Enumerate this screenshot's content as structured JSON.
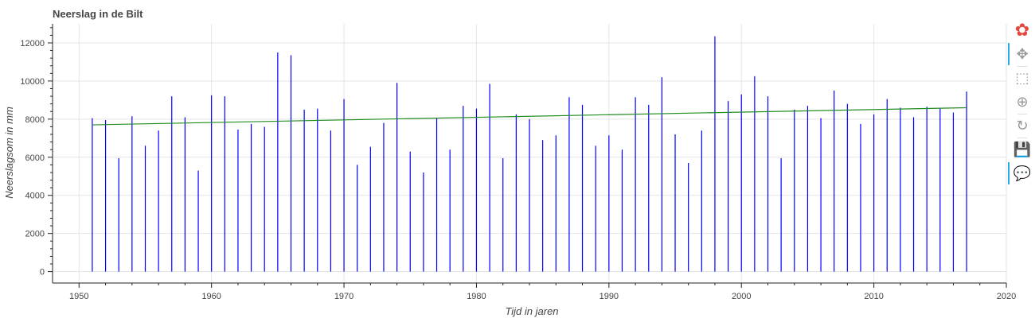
{
  "chart_data": {
    "type": "bar",
    "title": "Neerslag in de Bilt",
    "xlabel": "Tijd in jaren",
    "ylabel": "Neerslagsom in mm",
    "xlim": [
      1948,
      2020
    ],
    "ylim": [
      -600,
      13000
    ],
    "xticks": [
      1950,
      1960,
      1970,
      1980,
      1990,
      2000,
      2010,
      2020
    ],
    "yticks": [
      0,
      2000,
      4000,
      6000,
      8000,
      10000,
      12000
    ],
    "grid": true,
    "series": [
      {
        "years": [
          1951,
          1952,
          1953,
          1954,
          1955,
          1956,
          1957,
          1958,
          1959,
          1960,
          1961,
          1962,
          1963,
          1964,
          1965,
          1966,
          1967,
          1968,
          1969,
          1970,
          1971,
          1972,
          1973,
          1974,
          1975,
          1976,
          1977,
          1978,
          1979,
          1980,
          1981,
          1982,
          1983,
          1984,
          1985,
          1986,
          1987,
          1988,
          1989,
          1990,
          1991,
          1992,
          1993,
          1994,
          1995,
          1996,
          1997,
          1998,
          1999,
          2000,
          2001,
          2002,
          2003,
          2004,
          2005,
          2006,
          2007,
          2008,
          2009,
          2010,
          2011,
          2012,
          2013,
          2014,
          2015,
          2016,
          2017
        ],
        "values": [
          8050,
          7950,
          5950,
          8150,
          6600,
          7400,
          9200,
          8100,
          5300,
          9250,
          9200,
          7450,
          7750,
          7600,
          11500,
          11350,
          8500,
          8550,
          7400,
          9050,
          5600,
          6550,
          7800,
          9900,
          6300,
          5200,
          8050,
          6400,
          8700,
          8550,
          9850,
          5950,
          8250,
          8000,
          6900,
          7150,
          9150,
          8750,
          6600,
          7150,
          6400,
          9150,
          8750,
          10200,
          7200,
          5700,
          7400,
          12350,
          8950,
          9300,
          10250,
          9200,
          5950,
          8500,
          8700,
          8050,
          9500,
          8800,
          7750,
          8250,
          9050,
          8600,
          8100,
          8650,
          8550,
          8350,
          9450
        ],
        "color": "#0000ff"
      }
    ],
    "trend": {
      "x": [
        1951,
        2017
      ],
      "y": [
        7700,
        8600
      ],
      "color": "#228b22"
    }
  },
  "toolbar": {
    "tools": [
      {
        "name": "bokeh-logo-icon",
        "glyph": "✿",
        "active": false
      },
      {
        "name": "pan-tool-icon",
        "glyph": "✥",
        "active": true
      },
      {
        "name": "box-zoom-tool-icon",
        "glyph": "⬚",
        "active": false
      },
      {
        "name": "wheel-zoom-tool-icon",
        "glyph": "⊕",
        "active": false
      },
      {
        "name": "reset-tool-icon",
        "glyph": "↻",
        "active": false
      },
      {
        "name": "save-tool-icon",
        "glyph": "💾",
        "active": false
      },
      {
        "name": "hover-tool-icon",
        "glyph": "💬",
        "active": true
      }
    ]
  }
}
